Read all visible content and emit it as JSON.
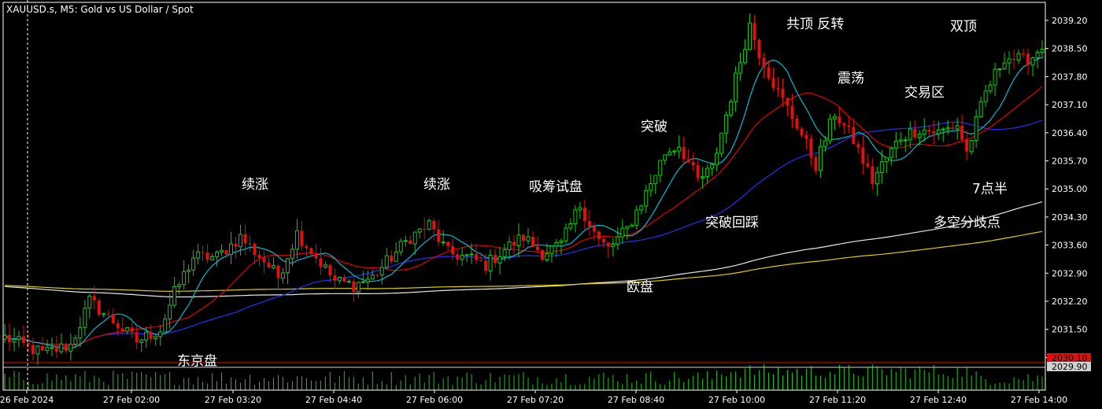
{
  "chart_data": {
    "type": "candlestick",
    "title": "XAUUSD.s, M5:  Gold vs US Dollar / Spot",
    "ylim": [
      2030.2,
      2039.6
    ],
    "grid": false,
    "y_ticks": [
      "2039.20",
      "2038.50",
      "2037.80",
      "2037.10",
      "2036.40",
      "2035.70",
      "2035.00",
      "2034.30",
      "2033.60",
      "2032.90",
      "2032.20",
      "2031.50",
      "2030.80"
    ],
    "x_ticks": [
      "26 Feb 2024",
      "27 Feb 02:00",
      "27 Feb 03:20",
      "27 Feb 04:40",
      "27 Feb 06:00",
      "27 Feb 07:20",
      "27 Feb 08:40",
      "27 Feb 10:00",
      "27 Feb 11:20",
      "27 Feb 12:40",
      "27 Feb 14:00"
    ],
    "price_tags": [
      {
        "value": "2030.10",
        "color": "#e01010"
      },
      {
        "value": "2029.90",
        "color": "#d0d0d0"
      }
    ],
    "annotations": [
      {
        "text": "续涨",
        "price": 2035.0
      },
      {
        "text": "续涨",
        "price": 2035.0
      },
      {
        "text": "吸筹试盘",
        "price": 2034.95
      },
      {
        "text": "突破",
        "price": 2036.45
      },
      {
        "text": "共顶 反转",
        "price": 2039.0
      },
      {
        "text": "双顶",
        "price": 2038.95
      },
      {
        "text": "震荡",
        "price": 2037.65
      },
      {
        "text": "交易区",
        "price": 2037.3
      },
      {
        "text": "7点半",
        "price": 2034.9
      },
      {
        "text": "多空分歧点",
        "price": 2034.05
      },
      {
        "text": "突破回踩",
        "price": 2034.05
      },
      {
        "text": "欧盘",
        "price": 2032.45
      },
      {
        "text": "东京盘",
        "price": 2030.6
      }
    ],
    "candle_keypoints": [
      [
        0,
        2031.3
      ],
      [
        8,
        2030.9
      ],
      [
        14,
        2031.1
      ],
      [
        18,
        2032.2
      ],
      [
        24,
        2031.6
      ],
      [
        28,
        2031.2
      ],
      [
        33,
        2031.5
      ],
      [
        36,
        2032.4
      ],
      [
        40,
        2033.3
      ],
      [
        45,
        2033.3
      ],
      [
        50,
        2033.8
      ],
      [
        55,
        2033.2
      ],
      [
        58,
        2032.8
      ],
      [
        62,
        2033.9
      ],
      [
        66,
        2033.3
      ],
      [
        70,
        2032.7
      ],
      [
        74,
        2032.6
      ],
      [
        78,
        2032.8
      ],
      [
        82,
        2033.3
      ],
      [
        86,
        2033.8
      ],
      [
        90,
        2034.1
      ],
      [
        94,
        2033.4
      ],
      [
        98,
        2033.3
      ],
      [
        102,
        2033.1
      ],
      [
        106,
        2033.5
      ],
      [
        110,
        2033.8
      ],
      [
        114,
        2033.4
      ],
      [
        118,
        2033.6
      ],
      [
        122,
        2034.6
      ],
      [
        126,
        2033.7
      ],
      [
        128,
        2033.5
      ],
      [
        132,
        2034.0
      ],
      [
        136,
        2034.9
      ],
      [
        140,
        2035.9
      ],
      [
        143,
        2036.1
      ],
      [
        147,
        2035.2
      ],
      [
        150,
        2035.5
      ],
      [
        154,
        2037.3
      ],
      [
        158,
        2039.1
      ],
      [
        160,
        2038.4
      ],
      [
        164,
        2037.4
      ],
      [
        168,
        2036.6
      ],
      [
        172,
        2035.6
      ],
      [
        176,
        2036.9
      ],
      [
        180,
        2036.2
      ],
      [
        184,
        2035.2
      ],
      [
        186,
        2035.6
      ],
      [
        190,
        2036.3
      ],
      [
        194,
        2036.5
      ],
      [
        198,
        2036.4
      ],
      [
        202,
        2036.6
      ],
      [
        204,
        2035.9
      ],
      [
        208,
        2037.4
      ],
      [
        212,
        2038.3
      ],
      [
        216,
        2038.2
      ],
      [
        218,
        2038.3
      ],
      [
        220,
        2038.6
      ]
    ],
    "volume_range": [
      1,
      10
    ],
    "indicators": [
      {
        "name": "MA-fast",
        "color": "#00bcd4"
      },
      {
        "name": "MA-mid",
        "color": "#e00000"
      },
      {
        "name": "MA-slow",
        "color": "#2233ee"
      },
      {
        "name": "MA-long-white",
        "color": "#e8e8e8"
      },
      {
        "name": "MA-long-yellow",
        "color": "#dccc00"
      }
    ],
    "colors": {
      "background": "#000000",
      "up": "#19c819",
      "down": "#e01010",
      "volume": "#19c819",
      "axis": "#ffffff"
    }
  }
}
